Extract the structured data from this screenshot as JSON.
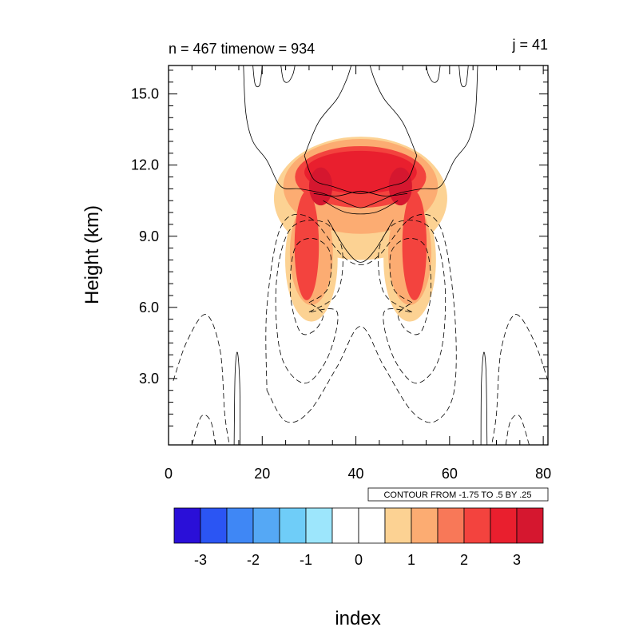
{
  "chart_data": {
    "type": "contour",
    "title_left": "n = 467  timenow = 934",
    "title_right": "j = 41",
    "xlabel": "index",
    "ylabel": "Height (km)",
    "xlim": [
      0,
      81
    ],
    "ylim": [
      0.2,
      16.2
    ],
    "xticks": [
      0,
      20,
      40,
      60,
      80
    ],
    "xtick_labels": [
      "0",
      "20",
      "40",
      "60",
      "80"
    ],
    "yticks": [
      3.0,
      6.0,
      9.0,
      12.0,
      15.0
    ],
    "ytick_labels": [
      "3.0",
      "6.0",
      "9.0",
      "12.0",
      "15.0"
    ],
    "contour_info": "CONTOUR FROM -1.75 TO .5 BY .25",
    "colorbar": {
      "boundaries": [
        -3.5,
        -3,
        -2.5,
        -2,
        -1.5,
        -1,
        -0.5,
        0,
        0.5,
        1,
        1.5,
        2,
        2.5,
        3,
        3.5
      ],
      "colors": [
        "#2a0fd8",
        "#2b55f3",
        "#3f87f5",
        "#55a8f5",
        "#6fcdf8",
        "#9de6fc",
        "#ffffff",
        "#ffffff",
        "#fcd293",
        "#fcac72",
        "#f87858",
        "#f3433e",
        "#e91f2e",
        "#d5172f"
      ],
      "tick_values": [
        -3,
        -2,
        -1,
        0,
        1,
        2,
        3
      ],
      "tick_labels": [
        "-3",
        "-2",
        "-1",
        "0",
        "1",
        "2",
        "3"
      ]
    },
    "fill_blobs": [
      {
        "x": 41,
        "y": 10.6,
        "rx": 18.5,
        "ry": 2.6,
        "level": 1
      },
      {
        "x": 30.5,
        "y": 8.0,
        "rx": 5.6,
        "ry": 2.6,
        "level": 1
      },
      {
        "x": 51.5,
        "y": 8.0,
        "rx": 5.6,
        "ry": 2.6,
        "level": 1
      },
      {
        "x": 41,
        "y": 11.1,
        "rx": 16.5,
        "ry": 2.0,
        "level": 2
      },
      {
        "x": 30.5,
        "y": 8.3,
        "rx": 4.6,
        "ry": 2.2,
        "level": 2
      },
      {
        "x": 51.5,
        "y": 8.3,
        "rx": 4.6,
        "ry": 2.2,
        "level": 2
      },
      {
        "x": 41,
        "y": 11.5,
        "rx": 14.0,
        "ry": 1.3,
        "level": 4
      },
      {
        "x": 29.5,
        "y": 8.6,
        "rx": 2.6,
        "ry": 2.3,
        "level": 4
      },
      {
        "x": 52.5,
        "y": 8.6,
        "rx": 2.6,
        "ry": 2.3,
        "level": 4
      },
      {
        "x": 41,
        "y": 11.7,
        "rx": 12.0,
        "ry": 0.9,
        "level": 5
      },
      {
        "x": 32.5,
        "y": 11.1,
        "rx": 2.5,
        "ry": 0.8,
        "level": 6
      },
      {
        "x": 49.5,
        "y": 11.1,
        "rx": 2.5,
        "ry": 0.8,
        "level": 6
      }
    ],
    "contours": [
      {
        "sign": "neg",
        "points": [
          [
            30,
            5.8
          ],
          [
            36,
            6.6
          ],
          [
            37,
            8.5
          ],
          [
            33,
            9.6
          ],
          [
            26,
            9.3
          ],
          [
            23,
            7
          ],
          [
            24,
            4
          ],
          [
            29,
            2.8
          ],
          [
            34,
            3.9
          ],
          [
            36,
            5.8
          ],
          [
            30,
            5.8
          ]
        ]
      },
      {
        "sign": "neg",
        "points": [
          [
            30,
            6.2
          ],
          [
            34,
            6.8
          ],
          [
            34.5,
            8.3
          ],
          [
            31,
            8.9
          ],
          [
            27,
            8.5
          ],
          [
            26,
            6.6
          ],
          [
            28,
            5.0
          ],
          [
            31,
            5.0
          ],
          [
            33,
            5.7
          ],
          [
            30,
            6.2
          ]
        ]
      },
      {
        "sign": "neg",
        "points": [
          [
            52,
            5.8
          ],
          [
            46,
            6.6
          ],
          [
            45,
            8.5
          ],
          [
            49,
            9.6
          ],
          [
            56,
            9.3
          ],
          [
            59,
            7
          ],
          [
            58,
            4
          ],
          [
            53,
            2.8
          ],
          [
            48,
            3.9
          ],
          [
            46,
            5.8
          ],
          [
            52,
            5.8
          ]
        ]
      },
      {
        "sign": "neg",
        "points": [
          [
            52,
            6.2
          ],
          [
            48,
            6.8
          ],
          [
            47.5,
            8.3
          ],
          [
            51,
            8.9
          ],
          [
            55,
            8.5
          ],
          [
            56,
            6.6
          ],
          [
            54,
            5.0
          ],
          [
            51,
            5.0
          ],
          [
            49,
            5.7
          ],
          [
            52,
            6.2
          ]
        ]
      },
      {
        "sign": "neg",
        "points": [
          [
            21,
            2.5
          ],
          [
            25,
            1.2
          ],
          [
            30,
            1.6
          ],
          [
            36,
            3.5
          ],
          [
            41,
            5.2
          ],
          [
            46,
            3.5
          ],
          [
            52,
            1.6
          ],
          [
            57,
            1.2
          ],
          [
            61,
            2.5
          ],
          [
            61,
            6
          ],
          [
            58,
            9.4
          ],
          [
            52,
            9.8
          ],
          [
            45,
            8.2
          ],
          [
            41,
            7.8
          ],
          [
            37,
            8.2
          ],
          [
            30,
            9.8
          ],
          [
            24,
            9.4
          ],
          [
            21,
            6
          ],
          [
            21,
            2.5
          ]
        ]
      },
      {
        "sign": "neg",
        "points": [
          [
            1,
            2.9
          ],
          [
            4,
            4.6
          ],
          [
            8,
            5.7
          ],
          [
            11,
            4.2
          ],
          [
            12,
            1.5
          ],
          [
            13,
            0.2
          ]
        ]
      },
      {
        "sign": "neg",
        "points": [
          [
            81,
            2.9
          ],
          [
            78,
            4.6
          ],
          [
            74,
            5.7
          ],
          [
            71,
            4.2
          ],
          [
            70,
            1.5
          ],
          [
            69,
            0.2
          ]
        ]
      },
      {
        "sign": "neg",
        "points": [
          [
            5,
            0.2
          ],
          [
            7,
            1.4
          ],
          [
            9,
            1.2
          ],
          [
            10,
            0.2
          ]
        ]
      },
      {
        "sign": "neg",
        "points": [
          [
            77,
            0.2
          ],
          [
            75,
            1.4
          ],
          [
            73,
            1.2
          ],
          [
            72,
            0.2
          ]
        ]
      },
      {
        "sign": "pos",
        "points": [
          [
            16,
            16.2
          ],
          [
            16.5,
            14.2
          ],
          [
            18,
            13.0
          ],
          [
            21,
            12.2
          ],
          [
            24,
            11.1
          ],
          [
            28,
            11.0
          ],
          [
            33,
            10.8
          ],
          [
            38,
            10.4
          ],
          [
            41,
            10.2
          ],
          [
            44,
            10.4
          ],
          [
            49,
            10.8
          ],
          [
            54,
            11.0
          ],
          [
            58,
            11.1
          ],
          [
            61,
            12.2
          ],
          [
            64,
            13.0
          ],
          [
            65.5,
            14.2
          ],
          [
            66,
            16.2
          ]
        ]
      },
      {
        "sign": "pos",
        "points": [
          [
            29,
            12.4
          ],
          [
            32,
            13.8
          ],
          [
            36,
            14.8
          ],
          [
            38,
            15.6
          ],
          [
            39,
            16.2
          ]
        ]
      },
      {
        "sign": "pos",
        "points": [
          [
            53,
            12.4
          ],
          [
            50,
            13.8
          ],
          [
            46,
            14.8
          ],
          [
            44,
            15.6
          ],
          [
            43,
            16.2
          ]
        ]
      },
      {
        "sign": "pos",
        "points": [
          [
            29,
            12.4
          ],
          [
            31,
            11.4
          ],
          [
            35,
            11.1
          ],
          [
            41,
            10.8
          ],
          [
            47,
            11.1
          ],
          [
            51,
            11.4
          ],
          [
            53,
            12.4
          ]
        ]
      },
      {
        "sign": "pos",
        "points": [
          [
            31,
            10.8
          ],
          [
            36,
            10.7
          ],
          [
            41,
            10.9
          ],
          [
            46,
            10.7
          ],
          [
            51,
            10.8
          ]
        ]
      },
      {
        "sign": "pos",
        "points": [
          [
            33,
            10.5
          ],
          [
            38,
            10.0
          ],
          [
            44,
            10.0
          ],
          [
            49,
            10.5
          ]
        ]
      },
      {
        "sign": "pos",
        "points": [
          [
            34,
            9.7
          ],
          [
            38,
            8.4
          ],
          [
            41,
            7.9
          ],
          [
            44,
            8.4
          ],
          [
            48,
            9.7
          ]
        ]
      },
      {
        "sign": "pos",
        "points": [
          [
            18,
            16.2
          ],
          [
            18.5,
            15.4
          ],
          [
            19.5,
            15.4
          ],
          [
            20,
            16.2
          ]
        ]
      },
      {
        "sign": "pos",
        "points": [
          [
            24,
            16.2
          ],
          [
            24.5,
            15.6
          ],
          [
            25.5,
            15.5
          ],
          [
            26.5,
            15.8
          ],
          [
            27,
            16.2
          ]
        ]
      },
      {
        "sign": "pos",
        "points": [
          [
            64,
            16.2
          ],
          [
            63.5,
            15.4
          ],
          [
            62.5,
            15.4
          ],
          [
            62,
            16.2
          ]
        ]
      },
      {
        "sign": "pos",
        "points": [
          [
            58,
            16.2
          ],
          [
            57.5,
            15.6
          ],
          [
            56.5,
            15.5
          ],
          [
            55.5,
            15.8
          ],
          [
            55,
            16.2
          ]
        ]
      },
      {
        "sign": "pos",
        "points": [
          [
            14,
            0.2
          ],
          [
            14.2,
            3.2
          ],
          [
            14.7,
            4.1
          ],
          [
            15.2,
            2.8
          ],
          [
            15.3,
            0.2
          ]
        ]
      },
      {
        "sign": "pos",
        "points": [
          [
            68,
            0.2
          ],
          [
            67.8,
            3.2
          ],
          [
            67.3,
            4.1
          ],
          [
            66.8,
            2.8
          ],
          [
            66.7,
            0.2
          ]
        ]
      }
    ]
  }
}
